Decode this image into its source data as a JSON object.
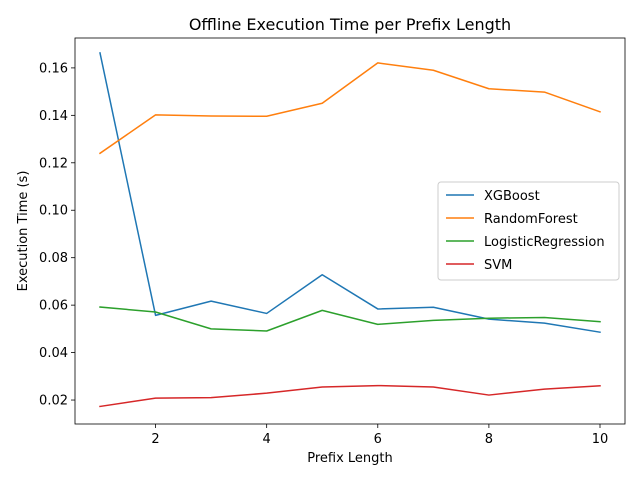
{
  "chart_data": {
    "type": "line",
    "title": "Offline Execution Time per Prefix Length",
    "xlabel": "Prefix Length",
    "ylabel": "Execution Time (s)",
    "x": [
      1,
      2,
      3,
      4,
      5,
      6,
      7,
      8,
      9,
      10
    ],
    "xlim": [
      0.55,
      10.45
    ],
    "ylim": [
      0.0099,
      0.1726
    ],
    "xticks": [
      2,
      4,
      6,
      8,
      10
    ],
    "xtick_labels": [
      "2",
      "4",
      "6",
      "8",
      "10"
    ],
    "yticks": [
      0.02,
      0.04,
      0.06,
      0.08,
      0.1,
      0.12,
      0.14,
      0.16
    ],
    "ytick_labels": [
      "0.02",
      "0.04",
      "0.06",
      "0.08",
      "0.10",
      "0.12",
      "0.14",
      "0.16"
    ],
    "grid": false,
    "legend_position": "center-right",
    "series": [
      {
        "name": "XGBoost",
        "color": "#1f77b4",
        "values": [
          0.1663,
          0.0557,
          0.0617,
          0.0565,
          0.0728,
          0.0584,
          0.0591,
          0.0541,
          0.0524,
          0.0486
        ]
      },
      {
        "name": "RandomForest",
        "color": "#ff7f0e",
        "values": [
          0.124,
          0.1402,
          0.1397,
          0.1396,
          0.1451,
          0.1621,
          0.159,
          0.1512,
          0.1498,
          0.1415
        ]
      },
      {
        "name": "LogisticRegression",
        "color": "#2ca02c",
        "values": [
          0.0592,
          0.0571,
          0.05,
          0.0491,
          0.0578,
          0.0519,
          0.0536,
          0.0545,
          0.0548,
          0.053
        ]
      },
      {
        "name": "SVM",
        "color": "#d62728",
        "values": [
          0.0173,
          0.0208,
          0.021,
          0.0229,
          0.0255,
          0.0261,
          0.0255,
          0.0221,
          0.0246,
          0.026
        ]
      }
    ]
  }
}
